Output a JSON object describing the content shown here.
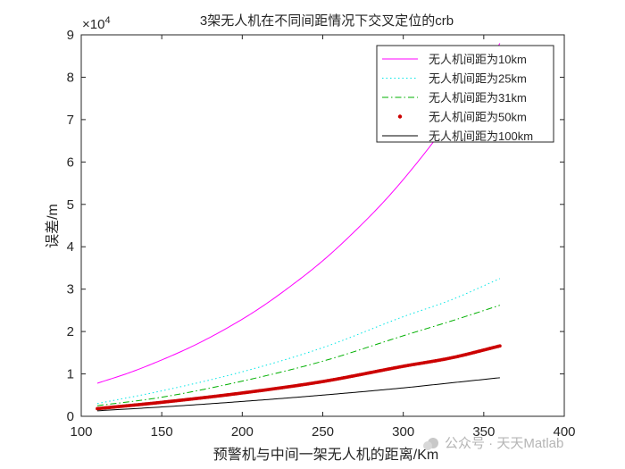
{
  "chart_data": {
    "type": "line",
    "title": "3架无人机在不同间距情况下交叉定位的crb",
    "xlabel": "预警机与中间一架无人机的距离/Km",
    "ylabel": "误差/m",
    "y_exponent_label": "×10",
    "y_exponent_power": "4",
    "xlim": [
      100,
      400
    ],
    "ylim": [
      0,
      9
    ],
    "x_ticks": [
      100,
      150,
      200,
      250,
      300,
      350,
      400
    ],
    "y_ticks": [
      0,
      1,
      2,
      3,
      4,
      5,
      6,
      7,
      8,
      9
    ],
    "x_tick_labels": [
      "100",
      "150",
      "200",
      "250",
      "300",
      "350",
      "400"
    ],
    "y_tick_labels": [
      "0",
      "1",
      "2",
      "3",
      "4",
      "5",
      "6",
      "7",
      "8",
      "9"
    ],
    "grid": false,
    "legend_position": "top-right",
    "series": [
      {
        "name": "无人机间距为10km",
        "color": "#ff00ff",
        "style": "solid",
        "x": [
          110,
          130,
          150,
          170,
          190,
          210,
          230,
          250,
          270,
          290,
          310,
          330,
          350,
          360
        ],
        "y": [
          0.78,
          1.03,
          1.33,
          1.67,
          2.07,
          2.53,
          3.07,
          3.67,
          4.37,
          5.15,
          6.05,
          7.05,
          8.15,
          8.8
        ]
      },
      {
        "name": "无人机间距为25km",
        "color": "#00e5e5",
        "style": "dotted",
        "x": [
          110,
          150,
          200,
          250,
          300,
          330,
          360
        ],
        "y": [
          0.3,
          0.6,
          1.05,
          1.62,
          2.35,
          2.75,
          3.25
        ]
      },
      {
        "name": "无人机间距为31km",
        "color": "#00b000",
        "style": "dashdot",
        "x": [
          110,
          150,
          200,
          250,
          300,
          330,
          360
        ],
        "y": [
          0.25,
          0.45,
          0.83,
          1.3,
          1.9,
          2.25,
          2.62
        ]
      },
      {
        "name": "无人机间距为50km",
        "color": "#cc0000",
        "style": "markers",
        "x": [
          110,
          150,
          200,
          250,
          300,
          330,
          360
        ],
        "y": [
          0.18,
          0.33,
          0.55,
          0.82,
          1.18,
          1.38,
          1.66
        ]
      },
      {
        "name": "无人机间距为100km",
        "color": "#000000",
        "style": "solid",
        "x": [
          110,
          150,
          200,
          250,
          300,
          330,
          360
        ],
        "y": [
          0.13,
          0.22,
          0.35,
          0.5,
          0.67,
          0.79,
          0.91
        ]
      }
    ]
  },
  "watermark": "公众号 · 天天Matlab"
}
